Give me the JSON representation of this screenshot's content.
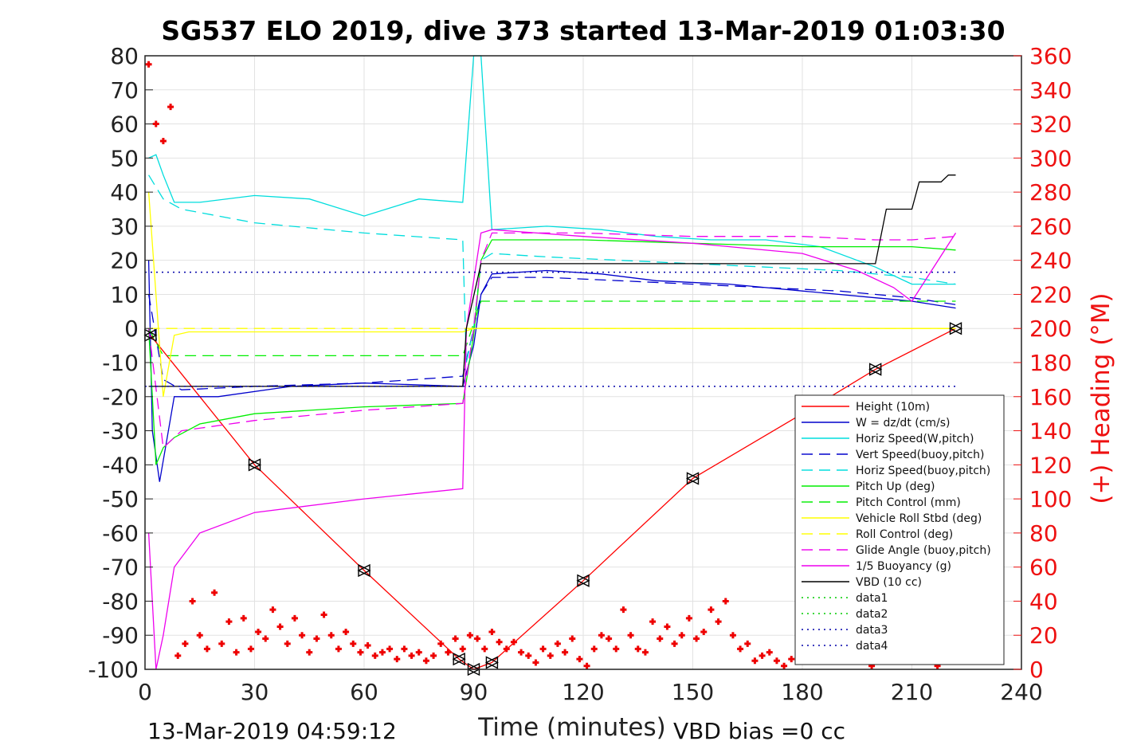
{
  "chart_data": {
    "type": "line",
    "title": "SG537 ELO 2019, dive 373 started 13-Mar-2019 01:03:30",
    "xlabel": "Time (minutes)",
    "ylabel_right": "(+) Heading (°M)",
    "xlim": [
      0,
      240
    ],
    "ylim_left": [
      -100,
      80
    ],
    "ylim_right": [
      0,
      360
    ],
    "x_ticks": [
      "0",
      "30",
      "60",
      "90",
      "120",
      "150",
      "180",
      "210",
      "240"
    ],
    "y_ticks_left": [
      "80",
      "70",
      "60",
      "50",
      "40",
      "30",
      "20",
      "10",
      "0",
      "-10",
      "-20",
      "-30",
      "-40",
      "-50",
      "-60",
      "-70",
      "-80",
      "-90",
      "-100"
    ],
    "y_ticks_right": [
      "360",
      "340",
      "320",
      "300",
      "280",
      "260",
      "240",
      "220",
      "200",
      "180",
      "160",
      "140",
      "120",
      "100",
      "80",
      "60",
      "40",
      "20",
      "0"
    ],
    "grid": true,
    "legend_position": "right-middle",
    "footer_left": "13-Mar-2019 04:59:12",
    "footer_right": "VBD bias =0 cc",
    "series": [
      {
        "name": "Height (10m)",
        "color": "#ff0000",
        "style": "solid",
        "x": [
          1.5,
          30,
          60,
          86,
          90,
          95,
          120,
          150,
          180,
          200,
          222
        ],
        "y": [
          -2,
          -40,
          -71,
          -97,
          -100,
          -98,
          -74,
          -44,
          -25,
          -12,
          0
        ]
      },
      {
        "name": "W = dz/dt (cm/s)",
        "color": "#0000cc",
        "style": "solid",
        "x": [
          1,
          2,
          4,
          8,
          12,
          20,
          40,
          60,
          87,
          90,
          92,
          95,
          110,
          125,
          140,
          160,
          180,
          200,
          210,
          222
        ],
        "y": [
          20,
          -30,
          -45,
          -20,
          -20,
          -20,
          -17,
          -16,
          -17,
          -5,
          10,
          16,
          17,
          16,
          14,
          13,
          11,
          9,
          8,
          6
        ]
      },
      {
        "name": "Horiz Speed(W,pitch)",
        "color": "#00dddd",
        "style": "solid",
        "x": [
          1,
          3,
          5,
          8,
          15,
          30,
          45,
          60,
          75,
          87,
          90,
          92,
          95,
          110,
          125,
          140,
          155,
          170,
          185,
          200,
          210,
          222
        ],
        "y": [
          50,
          51,
          45,
          37,
          37,
          39,
          38,
          33,
          38,
          37,
          80,
          80,
          29,
          30,
          29,
          27,
          26,
          26,
          24,
          18,
          13,
          13
        ]
      },
      {
        "name": "Vert Speed(buoy,pitch)",
        "color": "#0000cc",
        "style": "dashed",
        "x": [
          1,
          5,
          10,
          30,
          60,
          87,
          90,
          92,
          95,
          110,
          130,
          150,
          170,
          190,
          210,
          222
        ],
        "y": [
          10,
          -15,
          -18,
          -17,
          -16,
          -14,
          0,
          10,
          15,
          15,
          14,
          13,
          12,
          11,
          9,
          7
        ]
      },
      {
        "name": "Horiz Speed(buoy,pitch)",
        "color": "#00dddd",
        "style": "dashed",
        "x": [
          1,
          5,
          10,
          30,
          60,
          87,
          88,
          90,
          92,
          95,
          110,
          130,
          150,
          170,
          190,
          210,
          222
        ],
        "y": [
          45,
          38,
          35,
          31,
          28,
          26,
          -10,
          0,
          20,
          22,
          21,
          20,
          19,
          18,
          17,
          15,
          13
        ]
      },
      {
        "name": "Pitch Up (deg)",
        "color": "#00ee00",
        "style": "solid",
        "x": [
          1,
          3,
          5,
          8,
          15,
          30,
          60,
          87,
          90,
          92,
          95,
          120,
          150,
          180,
          200,
          210,
          222
        ],
        "y": [
          0,
          -40,
          -35,
          -32,
          -28,
          -25,
          -23,
          -22,
          -2,
          20,
          26,
          26,
          25,
          24,
          24,
          24,
          23
        ]
      },
      {
        "name": "Pitch Control (mm)",
        "color": "#00ee00",
        "style": "dashed",
        "x": [
          1,
          5,
          12,
          87,
          88,
          92,
          95,
          222
        ],
        "y": [
          0,
          -8,
          -8,
          -8,
          -5,
          8,
          8,
          8
        ]
      },
      {
        "name": "Vehicle Roll Stbd (deg)",
        "color": "#ffff00",
        "style": "solid",
        "x": [
          1,
          5,
          8,
          12,
          20,
          40,
          60,
          87,
          90,
          92,
          95,
          100,
          120,
          140,
          160,
          180,
          200,
          215,
          222
        ],
        "y": [
          40,
          -20,
          -2,
          -1,
          -1,
          -1,
          -1,
          -1,
          0,
          0,
          0,
          0,
          0,
          0,
          0,
          0,
          0,
          0,
          0
        ]
      },
      {
        "name": "Roll Control (deg)",
        "color": "#ffff00",
        "style": "dashed",
        "x": [
          1,
          222
        ],
        "y": [
          0,
          0
        ]
      },
      {
        "name": "Glide Angle (buoy,pitch)",
        "color": "#ee00ee",
        "style": "dashed",
        "x": [
          1,
          5,
          10,
          30,
          60,
          87,
          90,
          92,
          95,
          120,
          150,
          180,
          200,
          210,
          222
        ],
        "y": [
          0,
          -35,
          -30,
          -27,
          -24,
          -22,
          0,
          20,
          28,
          28,
          27,
          27,
          26,
          26,
          27
        ]
      },
      {
        "name": "1/5 Buoyancy (g)",
        "color": "#ee00ee",
        "style": "solid",
        "x": [
          1,
          3,
          5,
          8,
          15,
          30,
          60,
          87,
          88,
          92,
          95,
          120,
          150,
          180,
          195,
          205,
          210,
          222
        ],
        "y": [
          -60,
          -100,
          -90,
          -70,
          -60,
          -54,
          -50,
          -47,
          0,
          28,
          29,
          27,
          25,
          22,
          17,
          12,
          8,
          28
        ]
      },
      {
        "name": "VBD (10 cc)",
        "color": "#000000",
        "style": "solid",
        "x": [
          1,
          5,
          87,
          88,
          92,
          95,
          180,
          200,
          203,
          210,
          212,
          218,
          220,
          222
        ],
        "y": [
          -17,
          -17,
          -17,
          0,
          19,
          19,
          19,
          19,
          35,
          35,
          43,
          43,
          45,
          45
        ]
      },
      {
        "name": "data1",
        "color": "#00cc00",
        "style": "dotted",
        "x": [],
        "y": []
      },
      {
        "name": "data2",
        "color": "#00cc00",
        "style": "dotted",
        "x": [],
        "y": []
      },
      {
        "name": "data3",
        "color": "#0000aa",
        "style": "dotted",
        "x": [
          0,
          222
        ],
        "y": [
          16.5,
          16.5
        ]
      },
      {
        "name": "data4",
        "color": "#0000aa",
        "style": "dotted",
        "x": [
          0,
          222
        ],
        "y": [
          -17,
          -17
        ]
      }
    ],
    "heading_series": {
      "name": "Heading",
      "axis": "right",
      "color": "#ee0000",
      "marker": "+",
      "x": [
        1,
        3,
        5,
        7,
        9,
        11,
        13,
        15,
        17,
        19,
        21,
        23,
        25,
        27,
        29,
        31,
        33,
        35,
        37,
        39,
        41,
        43,
        45,
        47,
        49,
        51,
        53,
        55,
        57,
        59,
        61,
        63,
        65,
        67,
        69,
        71,
        73,
        75,
        77,
        79,
        81,
        83,
        85,
        87,
        89,
        91,
        93,
        95,
        97,
        99,
        101,
        103,
        105,
        107,
        109,
        111,
        113,
        115,
        117,
        119,
        121,
        123,
        125,
        127,
        129,
        131,
        133,
        135,
        137,
        139,
        141,
        143,
        145,
        147,
        149,
        151,
        153,
        155,
        157,
        159,
        161,
        163,
        165,
        167,
        169,
        171,
        173,
        175,
        177,
        179,
        181,
        183,
        185,
        187,
        189,
        191,
        193,
        195,
        197,
        199,
        201,
        203,
        205,
        207,
        209,
        211,
        213,
        215,
        217,
        219,
        221
      ],
      "y": [
        355,
        320,
        310,
        330,
        8,
        15,
        40,
        20,
        12,
        45,
        15,
        28,
        10,
        30,
        12,
        22,
        18,
        35,
        25,
        15,
        30,
        20,
        10,
        18,
        32,
        20,
        12,
        22,
        15,
        10,
        14,
        8,
        10,
        12,
        6,
        12,
        8,
        10,
        5,
        8,
        15,
        10,
        18,
        12,
        20,
        18,
        12,
        22,
        16,
        12,
        16,
        10,
        8,
        4,
        12,
        8,
        15,
        10,
        18,
        6,
        2,
        12,
        20,
        18,
        12,
        35,
        20,
        12,
        10,
        28,
        18,
        25,
        15,
        20,
        30,
        18,
        22,
        35,
        28,
        40,
        20,
        12,
        15,
        5,
        8,
        10,
        5,
        2,
        6,
        12,
        18,
        5,
        12,
        8,
        15,
        20,
        10,
        5,
        8,
        2,
        5,
        10,
        8,
        6,
        12,
        5,
        10,
        8,
        2,
        5,
        6
      ]
    }
  }
}
